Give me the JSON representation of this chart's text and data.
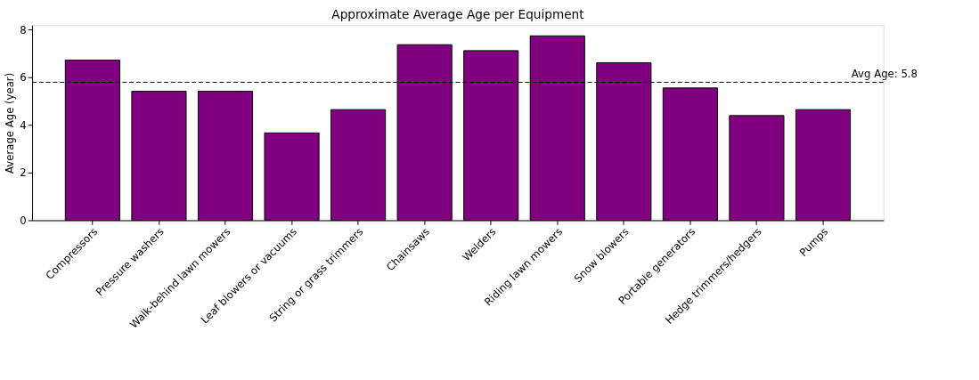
{
  "chart_data": {
    "type": "bar",
    "title": "Approximate Average Age per Equipment",
    "ylabel": "Average Age (year)",
    "categories": [
      "Compressors",
      "Pressure washers",
      "Walk-behind lawn mowers",
      "Leaf blowers or vacuums",
      "String or grass trimmers",
      "Chainsaws",
      "Welders",
      "Riding lawn mowers",
      "Snow blowers",
      "Portable generators",
      "Hedge trimmers/hedgers",
      "Pumps"
    ],
    "values": [
      6.73,
      5.42,
      5.42,
      3.67,
      4.65,
      7.38,
      7.13,
      7.75,
      6.62,
      5.56,
      4.4,
      4.65
    ],
    "color": "#800080",
    "ylim": [
      0,
      8.2
    ],
    "yticks": [
      0,
      2,
      4,
      6,
      8
    ],
    "ref_lines": [
      {
        "axis": "y",
        "value": 5.8,
        "label": "Avg Age: 5.8",
        "color": "#000000",
        "line_style": "dashed"
      }
    ],
    "grid": false
  }
}
